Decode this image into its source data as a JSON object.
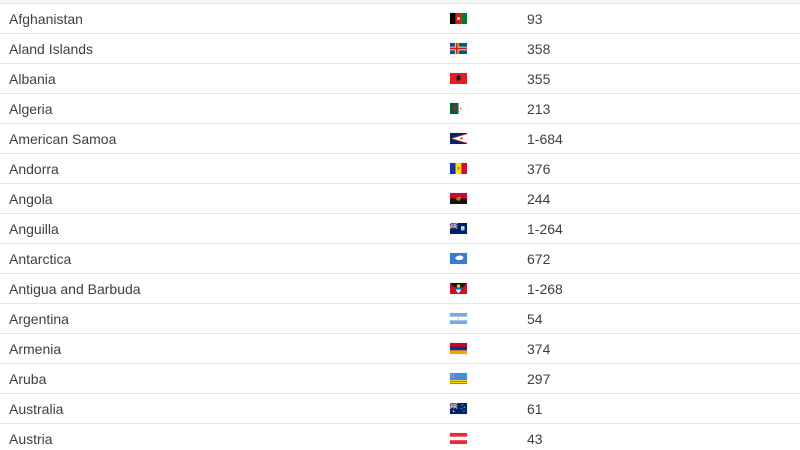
{
  "list": {
    "rows": [
      {
        "country": "Afghanistan",
        "code": "93",
        "flag": "afghanistan-flag-icon"
      },
      {
        "country": "Aland Islands",
        "code": "358",
        "flag": "aland-islands-flag-icon"
      },
      {
        "country": "Albania",
        "code": "355",
        "flag": "albania-flag-icon"
      },
      {
        "country": "Algeria",
        "code": "213",
        "flag": "algeria-flag-icon"
      },
      {
        "country": "American Samoa",
        "code": "1-684",
        "flag": "american-samoa-flag-icon"
      },
      {
        "country": "Andorra",
        "code": "376",
        "flag": "andorra-flag-icon"
      },
      {
        "country": "Angola",
        "code": "244",
        "flag": "angola-flag-icon"
      },
      {
        "country": "Anguilla",
        "code": "1-264",
        "flag": "anguilla-flag-icon"
      },
      {
        "country": "Antarctica",
        "code": "672",
        "flag": "antarctica-flag-icon"
      },
      {
        "country": "Antigua and Barbuda",
        "code": "1-268",
        "flag": "antigua-and-barbuda-flag-icon"
      },
      {
        "country": "Argentina",
        "code": "54",
        "flag": "argentina-flag-icon"
      },
      {
        "country": "Armenia",
        "code": "374",
        "flag": "armenia-flag-icon"
      },
      {
        "country": "Aruba",
        "code": "297",
        "flag": "aruba-flag-icon"
      },
      {
        "country": "Australia",
        "code": "61",
        "flag": "australia-flag-icon"
      },
      {
        "country": "Austria",
        "code": "43",
        "flag": "austria-flag-icon"
      }
    ]
  },
  "colors": {
    "row_text": "#3f3f3f",
    "separator": "#e7e7e7",
    "background": "#ffffff"
  }
}
